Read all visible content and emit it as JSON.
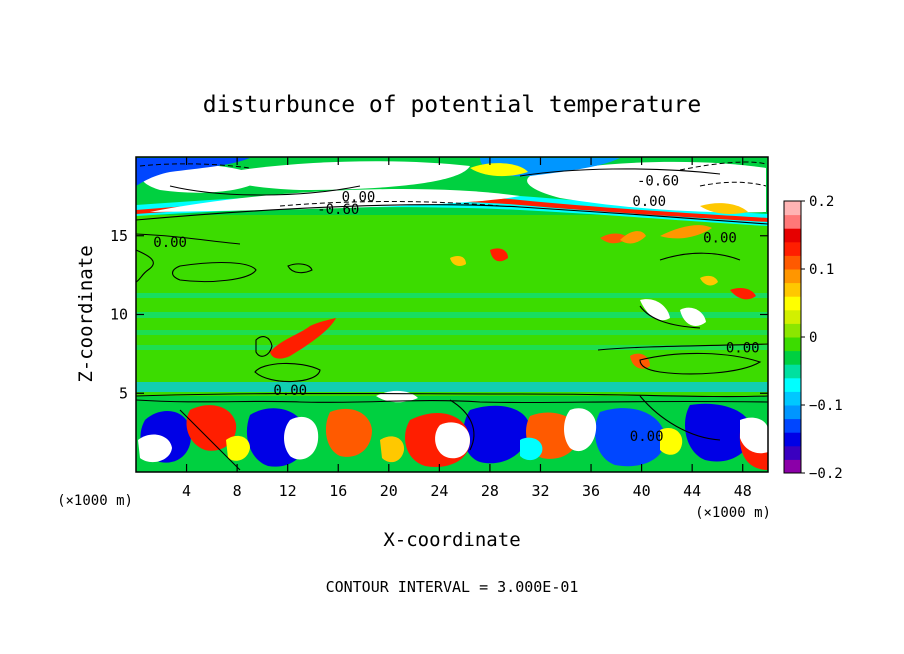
{
  "chart_data": {
    "type": "heatmap",
    "title": "disturbunce of potential temperature",
    "xlabel": "X-coordinate",
    "ylabel": "Z-coordinate",
    "x_unit_left": "(×1000 m)",
    "x_unit_right": "(×1000 m)",
    "footer": "CONTOUR INTERVAL = 3.000E-01",
    "xlim": [
      0,
      50
    ],
    "ylim": [
      0,
      20
    ],
    "x_ticks": [
      4,
      8,
      12,
      16,
      20,
      24,
      28,
      32,
      36,
      40,
      44,
      48
    ],
    "y_ticks": [
      5,
      10,
      15
    ],
    "colorbar": {
      "min": -0.2,
      "max": 0.2,
      "tick_values": [
        0.2,
        0.1,
        0,
        -0.1,
        -0.2
      ],
      "tick_labels": [
        "0.2",
        "0.1",
        "0",
        "−0.1",
        "−0.2"
      ],
      "colors": [
        "#8b00a8",
        "#3a00c0",
        "#0000e6",
        "#0046ff",
        "#0096ff",
        "#00c8ff",
        "#00ffff",
        "#00e0a0",
        "#00d040",
        "#3cdc00",
        "#8ce600",
        "#d2f000",
        "#ffff00",
        "#ffc800",
        "#ff9600",
        "#ff5a00",
        "#ff1e00",
        "#e60000",
        "#ff7878",
        "#ffb4b4"
      ]
    },
    "contour_labels": [
      {
        "text": "-0.60",
        "x": 16.0,
        "z": 16.7
      },
      {
        "text": "0.00",
        "x": 17.6,
        "z": 17.5
      },
      {
        "text": "-0.60",
        "x": 41.3,
        "z": 18.5
      },
      {
        "text": "0.00",
        "x": 40.6,
        "z": 17.2
      },
      {
        "text": "0.00",
        "x": 2.7,
        "z": 14.6
      },
      {
        "text": "0.00",
        "x": 46.2,
        "z": 14.9
      },
      {
        "text": "0.00",
        "x": 48.0,
        "z": 7.9
      },
      {
        "text": "0.00",
        "x": 12.2,
        "z": 5.2
      },
      {
        "text": "0.00",
        "x": 40.4,
        "z": 2.3
      }
    ]
  }
}
